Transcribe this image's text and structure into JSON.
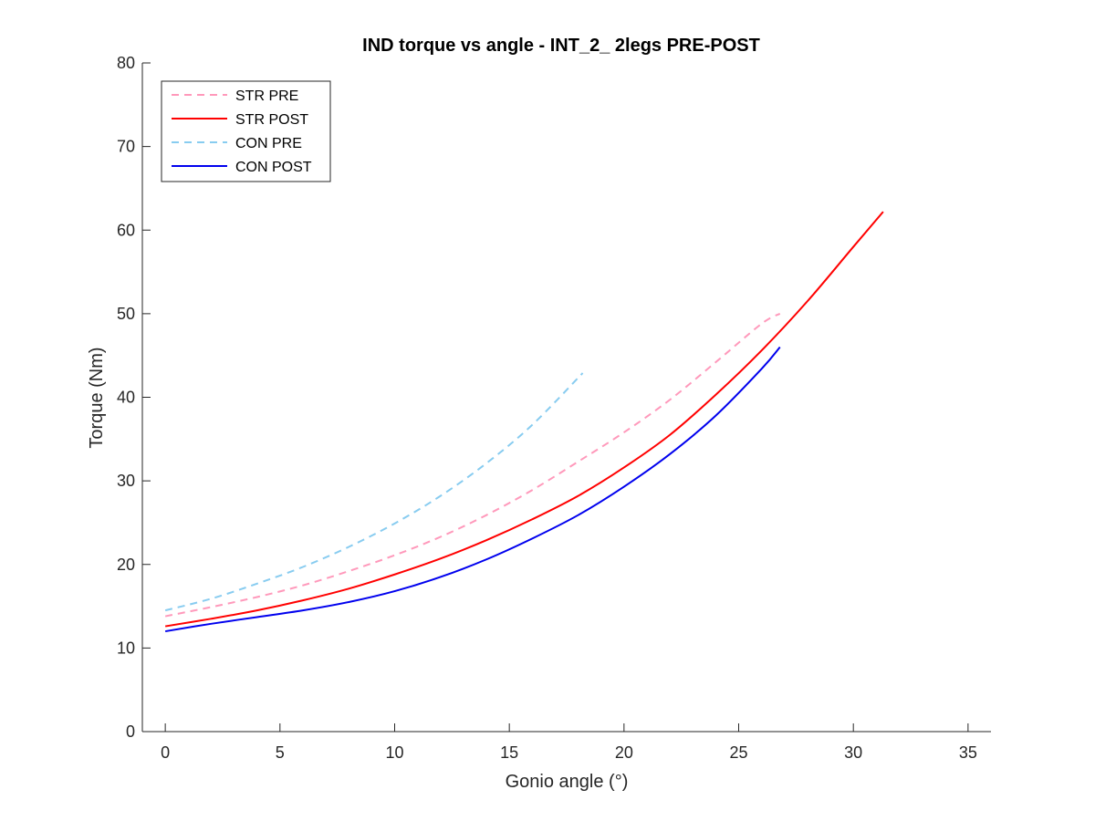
{
  "chart_data": {
    "type": "line",
    "title": "IND torque vs angle - INT_2_ 2legs PRE-POST",
    "xlabel": "Gonio angle (°)",
    "ylabel": "Torque (Nm)",
    "xlim": [
      -1,
      36
    ],
    "ylim": [
      0,
      80
    ],
    "xticks": [
      0,
      5,
      10,
      15,
      20,
      25,
      30,
      35
    ],
    "yticks": [
      0,
      10,
      20,
      30,
      40,
      50,
      60,
      70,
      80
    ],
    "grid": false,
    "legend_position": "top-left",
    "series": [
      {
        "name": "STR PRE",
        "color": "#ff99bb",
        "style": "dashed",
        "x": [
          0,
          2,
          4,
          6,
          8,
          10,
          12,
          14,
          16,
          18,
          20,
          22,
          24,
          26,
          26.8
        ],
        "y": [
          13.8,
          14.9,
          16.1,
          17.5,
          19.2,
          21.1,
          23.3,
          25.9,
          28.9,
          32.3,
          35.8,
          39.7,
          44.2,
          48.8,
          50
        ]
      },
      {
        "name": "STR POST",
        "color": "#ff0000",
        "style": "solid",
        "x": [
          0,
          2,
          4,
          6,
          8,
          10,
          12,
          14,
          16,
          18,
          20,
          22,
          24,
          26,
          28,
          30,
          31.3
        ],
        "y": [
          12.6,
          13.5,
          14.5,
          15.7,
          17.1,
          18.8,
          20.7,
          22.9,
          25.4,
          28.2,
          31.6,
          35.5,
          40.3,
          45.6,
          51.5,
          58,
          62.2
        ]
      },
      {
        "name": "CON PRE",
        "color": "#88ccf0",
        "style": "dashed",
        "x": [
          0,
          2,
          4,
          6,
          8,
          10,
          12,
          14,
          16,
          18.2
        ],
        "y": [
          14.5,
          15.9,
          17.7,
          19.7,
          22.1,
          24.9,
          28.2,
          32.1,
          36.7,
          42.9
        ]
      },
      {
        "name": "CON POST",
        "color": "#0000ee",
        "style": "solid",
        "x": [
          0,
          2,
          4,
          6,
          8,
          10,
          12,
          14,
          16,
          18,
          20,
          22,
          24,
          26,
          26.8
        ],
        "y": [
          12,
          12.9,
          13.7,
          14.5,
          15.5,
          16.8,
          18.5,
          20.6,
          23.1,
          25.9,
          29.3,
          33.2,
          37.8,
          43.4,
          46
        ]
      }
    ]
  }
}
